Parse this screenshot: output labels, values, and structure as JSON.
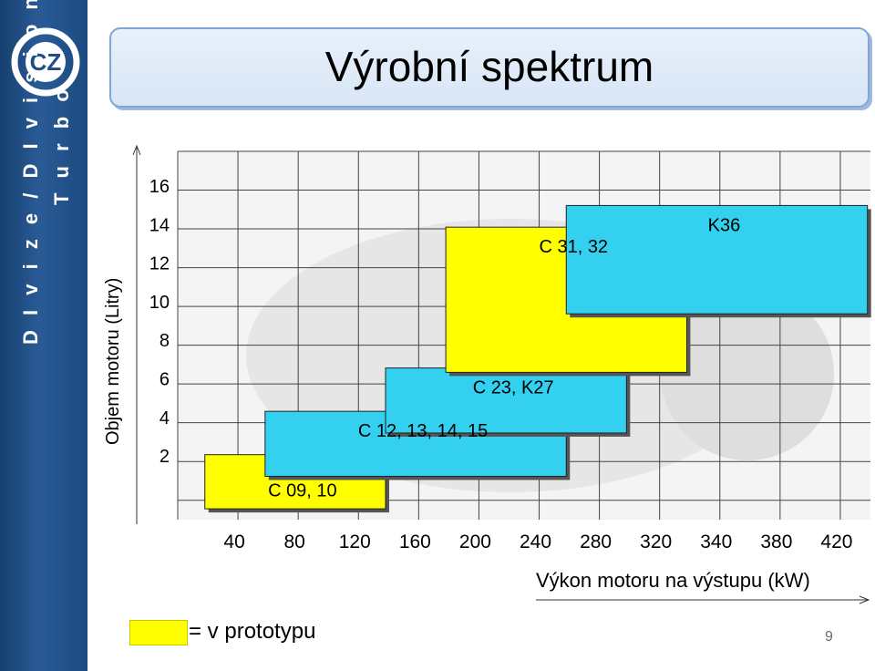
{
  "sidebar": {
    "line1": "D I v i z e / D I v i s i o n",
    "line2": "T u r b o",
    "logo": "cz-logo"
  },
  "title": "Výrobní spektrum",
  "legend": {
    "label": "= v prototypu",
    "color": "#ffff00"
  },
  "page_number": "9",
  "chart_data": {
    "type": "table",
    "xlabel": "Výkon motoru na výstupu (kW)",
    "ylabel": "Objem motoru (Litry)",
    "x_ticks": [
      "40",
      "80",
      "120",
      "160",
      "200",
      "240",
      "280",
      "320",
      "340",
      "380",
      "420"
    ],
    "y_ticks": [
      "16",
      "14",
      "12",
      "10",
      "8",
      "6",
      "4",
      "2"
    ],
    "regions": [
      {
        "label": "C 09, 10",
        "x_from": "40",
        "x_to": "120",
        "y_from": 0.5,
        "y_to": 3,
        "color": "#ffff00",
        "prototype": true
      },
      {
        "label": "C 12, 13, 14, 15",
        "x_from": "80",
        "x_to": "240",
        "y_from": 2,
        "y_to": 5,
        "color": "#33d0f0",
        "prototype": false
      },
      {
        "label": "C 23, K27",
        "x_from": "160",
        "x_to": "280",
        "y_from": 4,
        "y_to": 7,
        "color": "#33d0f0",
        "prototype": false
      },
      {
        "label": "C 31, 32",
        "x_from": "200",
        "x_to": "320",
        "y_from": 6.8,
        "y_to": 13.5,
        "color": "#ffff00",
        "prototype": true
      },
      {
        "label": "K36",
        "x_from": "280",
        "x_to": "420",
        "y_from": 9.5,
        "y_to": 14.5,
        "color": "#33d0f0",
        "prototype": false
      }
    ]
  }
}
